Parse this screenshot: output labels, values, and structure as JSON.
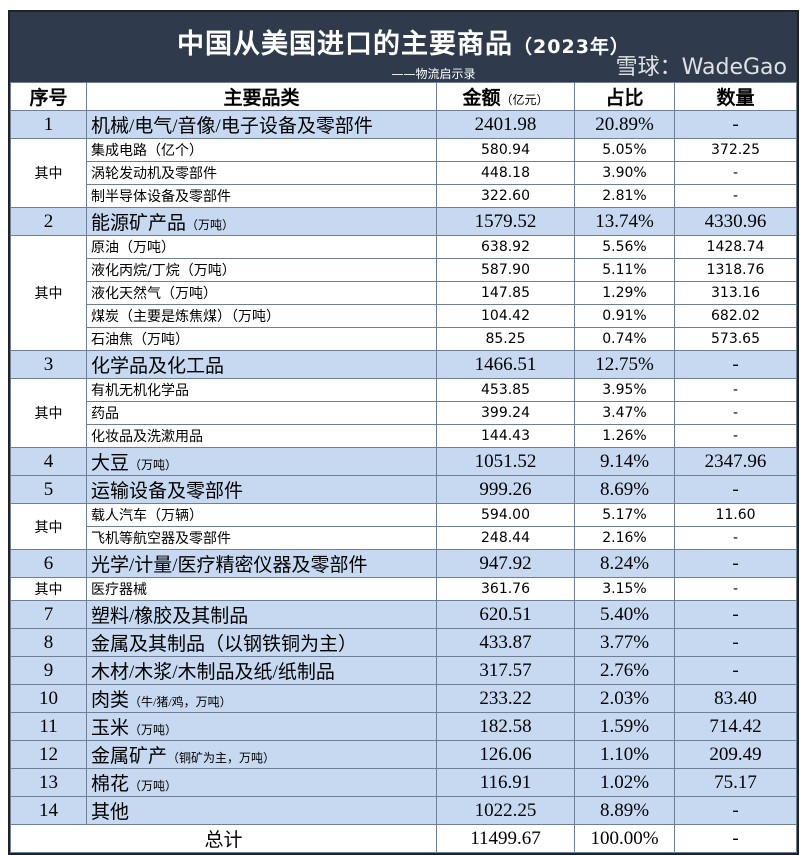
{
  "title": {
    "main": "中国从美国进口的主要商品",
    "year": "（2023年）",
    "subtitle": "——物流启示录"
  },
  "headers": {
    "no": "序号",
    "category": "主要品类",
    "amount": "金额",
    "amount_unit": "（亿元）",
    "share": "占比",
    "quantity": "数量"
  },
  "rows": [
    {
      "type": "main",
      "no": "1",
      "name": "机械/电气/音像/电子设备及零部件",
      "note": "",
      "amount": "2401.98",
      "share": "20.89%",
      "qty": "-"
    },
    {
      "type": "sub",
      "no": "其中",
      "span": 3,
      "name": "集成电路（亿个）",
      "amount": "580.94",
      "share": "5.05%",
      "qty": "372.25"
    },
    {
      "type": "sub",
      "name": "涡轮发动机及零部件",
      "amount": "448.18",
      "share": "3.90%",
      "qty": "-"
    },
    {
      "type": "sub",
      "name": "制半导体设备及零部件",
      "amount": "322.60",
      "share": "2.81%",
      "qty": "-"
    },
    {
      "type": "main",
      "no": "2",
      "name": "能源矿产品",
      "note": "（万吨）",
      "amount": "1579.52",
      "share": "13.74%",
      "qty": "4330.96"
    },
    {
      "type": "sub",
      "no": "其中",
      "span": 5,
      "name": "原油（万吨）",
      "amount": "638.92",
      "share": "5.56%",
      "qty": "1428.74"
    },
    {
      "type": "sub",
      "name": "液化丙烷/丁烷（万吨）",
      "amount": "587.90",
      "share": "5.11%",
      "qty": "1318.76"
    },
    {
      "type": "sub",
      "name": "液化天然气（万吨）",
      "amount": "147.85",
      "share": "1.29%",
      "qty": "313.16"
    },
    {
      "type": "sub",
      "name": "煤炭（主要是炼焦煤）（万吨）",
      "amount": "104.42",
      "share": "0.91%",
      "qty": "682.02"
    },
    {
      "type": "sub",
      "name": "石油焦（万吨）",
      "amount": "85.25",
      "share": "0.74%",
      "qty": "573.65"
    },
    {
      "type": "main",
      "no": "3",
      "name": "化学品及化工品",
      "note": "",
      "amount": "1466.51",
      "share": "12.75%",
      "qty": "-"
    },
    {
      "type": "sub",
      "no": "其中",
      "span": 3,
      "name": "有机无机化学品",
      "amount": "453.85",
      "share": "3.95%",
      "qty": "-"
    },
    {
      "type": "sub",
      "name": "药品",
      "amount": "399.24",
      "share": "3.47%",
      "qty": "-"
    },
    {
      "type": "sub",
      "name": "化妆品及洗漱用品",
      "amount": "144.43",
      "share": "1.26%",
      "qty": "-"
    },
    {
      "type": "main",
      "no": "4",
      "name": "大豆",
      "note": "（万吨）",
      "amount": "1051.52",
      "share": "9.14%",
      "qty": "2347.96"
    },
    {
      "type": "main",
      "no": "5",
      "name": "运输设备及零部件",
      "note": "",
      "amount": "999.26",
      "share": "8.69%",
      "qty": "-"
    },
    {
      "type": "sub",
      "no": "其中",
      "span": 2,
      "name": "载人汽车（万辆）",
      "amount": "594.00",
      "share": "5.17%",
      "qty": "11.60"
    },
    {
      "type": "sub",
      "name": "飞机等航空器及零部件",
      "amount": "248.44",
      "share": "2.16%",
      "qty": "-"
    },
    {
      "type": "main",
      "no": "6",
      "name": "光学/计量/医疗精密仪器及零部件",
      "note": "",
      "amount": "947.92",
      "share": "8.24%",
      "qty": "-"
    },
    {
      "type": "sub",
      "no": "其中",
      "span": 1,
      "name": "医疗器械",
      "amount": "361.76",
      "share": "3.15%",
      "qty": "-"
    },
    {
      "type": "main",
      "no": "7",
      "name": "塑料/橡胶及其制品",
      "note": "",
      "amount": "620.51",
      "share": "5.40%",
      "qty": "-"
    },
    {
      "type": "main",
      "no": "8",
      "name": "金属及其制品（以钢铁铜为主）",
      "note": "",
      "amount": "433.87",
      "share": "3.77%",
      "qty": "-"
    },
    {
      "type": "main",
      "no": "9",
      "name": "木材/木浆/木制品及纸/纸制品",
      "note": "",
      "amount": "317.57",
      "share": "2.76%",
      "qty": "-"
    },
    {
      "type": "main",
      "no": "10",
      "name": "肉类",
      "note": "（牛/猪/鸡，万吨）",
      "amount": "233.22",
      "share": "2.03%",
      "qty": "83.40"
    },
    {
      "type": "main",
      "no": "11",
      "name": "玉米",
      "note": "（万吨）",
      "amount": "182.58",
      "share": "1.59%",
      "qty": "714.42"
    },
    {
      "type": "main",
      "no": "12",
      "name": "金属矿产",
      "note": "（铜矿为主，万吨）",
      "amount": "126.06",
      "share": "1.10%",
      "qty": "209.49"
    },
    {
      "type": "main",
      "no": "13",
      "name": "棉花",
      "note": "（万吨）",
      "amount": "116.91",
      "share": "1.02%",
      "qty": "75.17"
    },
    {
      "type": "main",
      "no": "14",
      "name": "其他",
      "note": "",
      "amount": "1022.25",
      "share": "8.89%",
      "qty": "-"
    }
  ],
  "total": {
    "label": "总计",
    "amount": "11499.67",
    "share": "100.00%",
    "qty": "-"
  },
  "watermark": "雪球：WadeGao",
  "colors": {
    "title_bg": "#2f3b4d",
    "main_row_bg": "#c6d9f0"
  }
}
